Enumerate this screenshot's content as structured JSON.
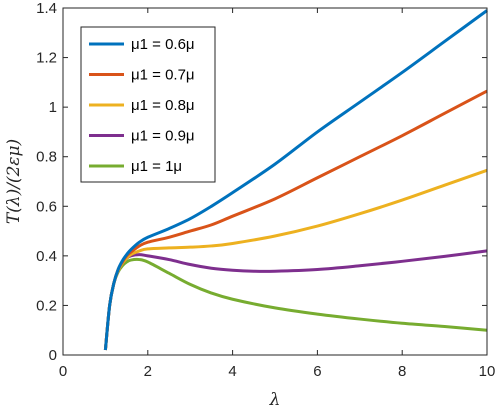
{
  "chart_data": {
    "type": "line",
    "xlabel": "λ",
    "ylabel": "T(λ)/(2εμ)",
    "xlim": [
      0,
      10
    ],
    "ylim": [
      0,
      1.4
    ],
    "xticks": [
      "0",
      "2",
      "4",
      "6",
      "8",
      "10"
    ],
    "yticks": [
      "0",
      "0.2",
      "0.4",
      "0.6",
      "0.8",
      "1",
      "1.2",
      "1.4"
    ],
    "grid": false,
    "legend_position": "top-left",
    "series": [
      {
        "name": "μ1 = 0.6μ",
        "color": "#0072BD",
        "points": [
          [
            1.0,
            0.02
          ],
          [
            1.1,
            0.2
          ],
          [
            1.2,
            0.29
          ],
          [
            1.3,
            0.345
          ],
          [
            1.4,
            0.38
          ],
          [
            1.5,
            0.405
          ],
          [
            1.6,
            0.425
          ],
          [
            1.8,
            0.455
          ],
          [
            2.0,
            0.475
          ],
          [
            2.5,
            0.51
          ],
          [
            3.0,
            0.55
          ],
          [
            3.5,
            0.6
          ],
          [
            4.0,
            0.655
          ],
          [
            5.0,
            0.77
          ],
          [
            6.0,
            0.9
          ],
          [
            7.0,
            1.02
          ],
          [
            8.0,
            1.14
          ],
          [
            9.0,
            1.265
          ],
          [
            10.0,
            1.39
          ]
        ]
      },
      {
        "name": "μ1 = 0.7μ",
        "color": "#D95319",
        "points": [
          [
            1.0,
            0.02
          ],
          [
            1.1,
            0.2
          ],
          [
            1.2,
            0.29
          ],
          [
            1.3,
            0.345
          ],
          [
            1.4,
            0.375
          ],
          [
            1.5,
            0.4
          ],
          [
            1.6,
            0.415
          ],
          [
            1.8,
            0.44
          ],
          [
            2.0,
            0.455
          ],
          [
            2.5,
            0.475
          ],
          [
            3.0,
            0.5
          ],
          [
            3.5,
            0.525
          ],
          [
            4.0,
            0.56
          ],
          [
            5.0,
            0.63
          ],
          [
            6.0,
            0.715
          ],
          [
            7.0,
            0.8
          ],
          [
            8.0,
            0.885
          ],
          [
            9.0,
            0.975
          ],
          [
            10.0,
            1.065
          ]
        ]
      },
      {
        "name": "μ1 = 0.8μ",
        "color": "#EDB120",
        "points": [
          [
            1.0,
            0.02
          ],
          [
            1.1,
            0.2
          ],
          [
            1.2,
            0.29
          ],
          [
            1.3,
            0.34
          ],
          [
            1.4,
            0.37
          ],
          [
            1.5,
            0.39
          ],
          [
            1.6,
            0.405
          ],
          [
            1.8,
            0.42
          ],
          [
            2.0,
            0.428
          ],
          [
            2.5,
            0.432
          ],
          [
            3.0,
            0.435
          ],
          [
            3.5,
            0.44
          ],
          [
            4.0,
            0.45
          ],
          [
            5.0,
            0.48
          ],
          [
            6.0,
            0.52
          ],
          [
            7.0,
            0.57
          ],
          [
            8.0,
            0.625
          ],
          [
            9.0,
            0.685
          ],
          [
            10.0,
            0.745
          ]
        ]
      },
      {
        "name": "μ1 = 0.9μ",
        "color": "#7E2F8E",
        "points": [
          [
            1.0,
            0.02
          ],
          [
            1.1,
            0.2
          ],
          [
            1.2,
            0.29
          ],
          [
            1.3,
            0.34
          ],
          [
            1.4,
            0.37
          ],
          [
            1.5,
            0.39
          ],
          [
            1.6,
            0.4
          ],
          [
            1.8,
            0.405
          ],
          [
            2.0,
            0.4
          ],
          [
            2.5,
            0.385
          ],
          [
            3.0,
            0.365
          ],
          [
            3.5,
            0.35
          ],
          [
            4.0,
            0.342
          ],
          [
            4.5,
            0.338
          ],
          [
            5.0,
            0.338
          ],
          [
            6.0,
            0.345
          ],
          [
            7.0,
            0.36
          ],
          [
            8.0,
            0.378
          ],
          [
            9.0,
            0.398
          ],
          [
            10.0,
            0.42
          ]
        ]
      },
      {
        "name": "μ1 = 1μ",
        "color": "#77AC30",
        "points": [
          [
            1.0,
            0.02
          ],
          [
            1.1,
            0.2
          ],
          [
            1.2,
            0.29
          ],
          [
            1.3,
            0.335
          ],
          [
            1.4,
            0.36
          ],
          [
            1.5,
            0.375
          ],
          [
            1.6,
            0.383
          ],
          [
            1.8,
            0.385
          ],
          [
            2.0,
            0.375
          ],
          [
            2.5,
            0.33
          ],
          [
            3.0,
            0.285
          ],
          [
            3.5,
            0.25
          ],
          [
            4.0,
            0.225
          ],
          [
            5.0,
            0.19
          ],
          [
            6.0,
            0.165
          ],
          [
            7.0,
            0.145
          ],
          [
            8.0,
            0.128
          ],
          [
            9.0,
            0.115
          ],
          [
            10.0,
            0.1
          ]
        ]
      }
    ]
  }
}
